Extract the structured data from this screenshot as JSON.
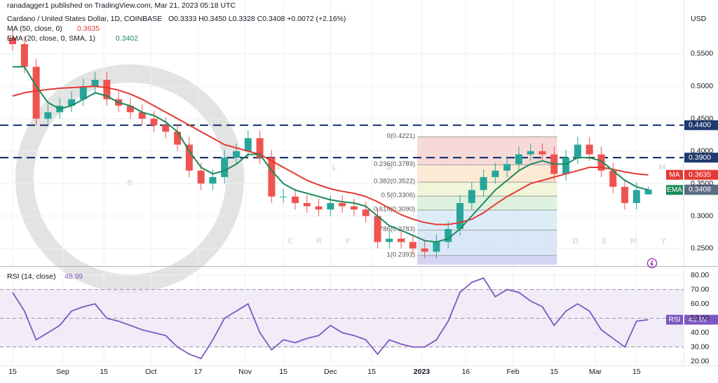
{
  "header": {
    "publisher": "ranadagger1 published on TradingView.com, Mar 21, 2023 05:18 UTC",
    "symbol": "Cardano / United States Dollar, 1D, COINBASE",
    "ohlc": "O0.3333 H0.3450 L0.3328 C0.3408 +0.0072 (+2.16%)"
  },
  "watermark": {
    "line1": "PLATINUM",
    "line2": "CRYPTO ACADEMY"
  },
  "chart_data": [
    {
      "type": "candlestick",
      "axis_label": "USD",
      "x": [
        0,
        4,
        8,
        12,
        16,
        20,
        24,
        28,
        32,
        36,
        40,
        44,
        48,
        52,
        56,
        60,
        64,
        68,
        72,
        76,
        80,
        84,
        88,
        92,
        96,
        100,
        104,
        108,
        112,
        116,
        120,
        124,
        128,
        132,
        136,
        140,
        144,
        148,
        152,
        156,
        160,
        164,
        168,
        172,
        176,
        180,
        184,
        188,
        192,
        196,
        200,
        204,
        208,
        212,
        216
      ],
      "xlim": [
        -4.3,
        228
      ],
      "xticks": [
        {
          "value": 0,
          "label": "15"
        },
        {
          "value": 17,
          "label": "Sep"
        },
        {
          "value": 31,
          "label": "15"
        },
        {
          "value": 47,
          "label": "Oct"
        },
        {
          "value": 63,
          "label": "17"
        },
        {
          "value": 79,
          "label": "Nov"
        },
        {
          "value": 92,
          "label": "15"
        },
        {
          "value": 108,
          "label": "Dec"
        },
        {
          "value": 122,
          "label": "15"
        },
        {
          "value": 139,
          "label": "2023"
        },
        {
          "value": 154,
          "label": "16"
        },
        {
          "value": 170,
          "label": "Feb"
        },
        {
          "value": 184,
          "label": "15"
        },
        {
          "value": 198,
          "label": "Mar"
        },
        {
          "value": 212,
          "label": "15"
        }
      ],
      "ylim": [
        0.225,
        0.633
      ],
      "yticks": [
        {
          "value": 0.25,
          "label": "0.2500"
        },
        {
          "value": 0.3,
          "label": "0.3000"
        },
        {
          "value": 0.35,
          "label": "0.3500"
        },
        {
          "value": 0.4,
          "label": "0.4000"
        },
        {
          "value": 0.45,
          "label": "0.4500"
        },
        {
          "value": 0.5,
          "label": "0.5000"
        },
        {
          "value": 0.55,
          "label": "0.5500"
        }
      ],
      "grid": true,
      "up_color": "#26a69a",
      "down_color": "#ef5350",
      "close_tag_color": "#5d6b86",
      "open": [
        0.575,
        0.565,
        0.53,
        0.45,
        0.46,
        0.47,
        0.48,
        0.5,
        0.51,
        0.48,
        0.47,
        0.46,
        0.45,
        0.44,
        0.43,
        0.41,
        0.37,
        0.35,
        0.36,
        0.39,
        0.4,
        0.42,
        0.39,
        0.33,
        0.33,
        0.32,
        0.315,
        0.31,
        0.32,
        0.315,
        0.31,
        0.3,
        0.26,
        0.265,
        0.26,
        0.25,
        0.245,
        0.26,
        0.28,
        0.32,
        0.34,
        0.36,
        0.37,
        0.38,
        0.395,
        0.4,
        0.395,
        0.365,
        0.39,
        0.41,
        0.395,
        0.37,
        0.345,
        0.32,
        0.3333
      ],
      "high": [
        0.587,
        0.577,
        0.542,
        0.472,
        0.482,
        0.492,
        0.512,
        0.522,
        0.522,
        0.492,
        0.482,
        0.472,
        0.462,
        0.452,
        0.442,
        0.422,
        0.382,
        0.372,
        0.402,
        0.412,
        0.432,
        0.432,
        0.402,
        0.342,
        0.342,
        0.332,
        0.327,
        0.332,
        0.332,
        0.327,
        0.322,
        0.312,
        0.277,
        0.277,
        0.272,
        0.262,
        0.272,
        0.292,
        0.332,
        0.352,
        0.372,
        0.382,
        0.392,
        0.407,
        0.412,
        0.412,
        0.407,
        0.402,
        0.422,
        0.422,
        0.407,
        0.382,
        0.357,
        0.352,
        0.345
      ],
      "low": [
        0.555,
        0.52,
        0.44,
        0.44,
        0.45,
        0.46,
        0.47,
        0.49,
        0.47,
        0.46,
        0.45,
        0.44,
        0.43,
        0.42,
        0.4,
        0.36,
        0.34,
        0.34,
        0.35,
        0.38,
        0.39,
        0.38,
        0.32,
        0.32,
        0.31,
        0.305,
        0.3,
        0.3,
        0.305,
        0.3,
        0.29,
        0.25,
        0.25,
        0.25,
        0.24,
        0.235,
        0.235,
        0.25,
        0.27,
        0.31,
        0.33,
        0.35,
        0.36,
        0.37,
        0.385,
        0.385,
        0.355,
        0.355,
        0.38,
        0.385,
        0.36,
        0.335,
        0.31,
        0.31,
        0.3328
      ],
      "close": [
        0.565,
        0.53,
        0.45,
        0.46,
        0.47,
        0.48,
        0.5,
        0.51,
        0.48,
        0.47,
        0.46,
        0.45,
        0.44,
        0.43,
        0.41,
        0.37,
        0.35,
        0.36,
        0.39,
        0.4,
        0.42,
        0.39,
        0.33,
        0.33,
        0.32,
        0.315,
        0.31,
        0.32,
        0.315,
        0.31,
        0.3,
        0.26,
        0.265,
        0.26,
        0.25,
        0.245,
        0.26,
        0.28,
        0.32,
        0.34,
        0.36,
        0.37,
        0.38,
        0.395,
        0.4,
        0.395,
        0.365,
        0.39,
        0.41,
        0.395,
        0.37,
        0.345,
        0.32,
        0.34,
        0.3408
      ],
      "series": [
        {
          "name": "MA (50, close, 0)",
          "tag": "MA",
          "color": "#e53935",
          "values": [
            0.485,
            0.49,
            0.493,
            0.495,
            0.497,
            0.498,
            0.499,
            0.5,
            0.498,
            0.494,
            0.488,
            0.48,
            0.47,
            0.46,
            0.45,
            0.44,
            0.43,
            0.42,
            0.41,
            0.405,
            0.4,
            0.395,
            0.385,
            0.375,
            0.365,
            0.355,
            0.348,
            0.342,
            0.338,
            0.335,
            0.33,
            0.322,
            0.312,
            0.302,
            0.295,
            0.29,
            0.287,
            0.287,
            0.29,
            0.295,
            0.305,
            0.318,
            0.33,
            0.34,
            0.35,
            0.355,
            0.36,
            0.365,
            0.37,
            0.375,
            0.375,
            0.372,
            0.368,
            0.365,
            0.3635
          ]
        },
        {
          "name": "EMA (20, close, 0, SMA, 1)",
          "tag": "EMA",
          "color": "#1b8a5a",
          "values": [
            0.53,
            0.53,
            0.5,
            0.475,
            0.465,
            0.47,
            0.48,
            0.49,
            0.485,
            0.475,
            0.47,
            0.46,
            0.455,
            0.445,
            0.43,
            0.4,
            0.375,
            0.365,
            0.37,
            0.38,
            0.395,
            0.395,
            0.37,
            0.35,
            0.34,
            0.335,
            0.33,
            0.325,
            0.322,
            0.32,
            0.315,
            0.3,
            0.285,
            0.278,
            0.27,
            0.262,
            0.26,
            0.265,
            0.28,
            0.3,
            0.32,
            0.34,
            0.355,
            0.37,
            0.38,
            0.385,
            0.38,
            0.38,
            0.39,
            0.39,
            0.385,
            0.37,
            0.355,
            0.345,
            0.3402
          ]
        }
      ],
      "levels": [
        {
          "value": 0.44,
          "label": "0.4400"
        },
        {
          "value": 0.39,
          "label": "0.3900"
        }
      ],
      "level_color": "#1e3a6e",
      "fib": {
        "x_start": 137.5,
        "x_end": 185,
        "levels": [
          {
            "value": 0.4221,
            "label": "0(0.4221)"
          },
          {
            "value": 0.3789,
            "label": "0.236(0.3789)"
          },
          {
            "value": 0.3522,
            "label": "0.382(0.3522)"
          },
          {
            "value": 0.3306,
            "label": "0.5(0.3306)"
          },
          {
            "value": 0.309,
            "label": "0.618(0.3090)"
          },
          {
            "value": 0.2783,
            "label": "0.786(0.2783)"
          },
          {
            "value": 0.2391,
            "label": "1(0.2391)"
          }
        ],
        "colors": [
          "#f6d3d1",
          "#fbe6cc",
          "#eef3d2",
          "#d8efd8",
          "#d6eaf6",
          "#d3e3f5",
          "#cfcdf3"
        ]
      }
    },
    {
      "type": "line",
      "title": "RSI (14, close)",
      "x": [
        0,
        4,
        8,
        12,
        16,
        20,
        24,
        28,
        32,
        36,
        40,
        44,
        48,
        52,
        56,
        60,
        64,
        68,
        72,
        76,
        80,
        84,
        88,
        92,
        96,
        100,
        104,
        108,
        112,
        116,
        120,
        124,
        128,
        132,
        136,
        140,
        144,
        148,
        152,
        156,
        160,
        164,
        168,
        172,
        176,
        180,
        184,
        188,
        192,
        196,
        200,
        204,
        208,
        212,
        216
      ],
      "xlim": [
        -4.3,
        228
      ],
      "ylim": [
        17.1,
        84.9
      ],
      "yticks": [
        {
          "value": 20,
          "label": "20.00"
        },
        {
          "value": 30,
          "label": "30.00"
        },
        {
          "value": 40,
          "label": "40.00"
        },
        {
          "value": 50,
          "label": "50.00"
        },
        {
          "value": 60,
          "label": "60.00"
        },
        {
          "value": 70,
          "label": "70.00"
        },
        {
          "value": 80,
          "label": "80.00"
        }
      ],
      "band": [
        30,
        70
      ],
      "ref_lines": [
        30,
        50,
        70
      ],
      "band_color": "#ede7f6",
      "series": [
        {
          "name": "RSI",
          "color": "#7e57c2",
          "values": [
            68,
            55,
            35,
            40,
            45,
            55,
            58,
            60,
            50,
            48,
            45,
            42,
            40,
            38,
            30,
            25,
            22,
            35,
            50,
            55,
            60,
            40,
            28,
            35,
            33,
            36,
            38,
            45,
            40,
            38,
            35,
            25,
            35,
            32,
            30,
            30,
            35,
            48,
            68,
            75,
            78,
            65,
            70,
            68,
            62,
            58,
            45,
            55,
            60,
            55,
            42,
            36,
            30,
            48,
            48.99
          ]
        }
      ]
    }
  ]
}
